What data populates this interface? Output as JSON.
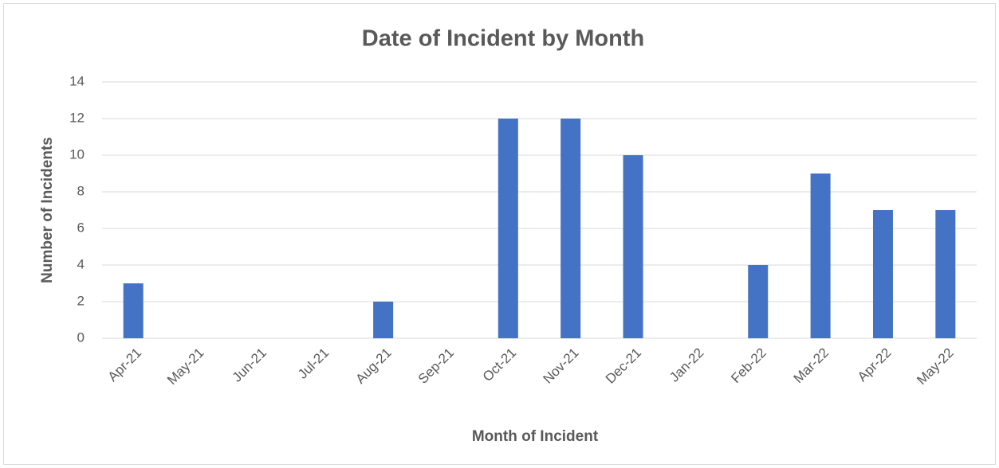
{
  "chart_data": {
    "type": "bar",
    "title": "Date of Incident by Month",
    "x_label": "Month of Incident",
    "y_label": "Number of Incidents",
    "categories": [
      "Apr-21",
      "May-21",
      "Jun-21",
      "Jul-21",
      "Aug-21",
      "Sep-21",
      "Oct-21",
      "Nov-21",
      "Dec-21",
      "Jan-22",
      "Feb-22",
      "Mar-22",
      "Apr-22",
      "May-22"
    ],
    "values": [
      3,
      0,
      0,
      0,
      2,
      0,
      12,
      12,
      10,
      0,
      4,
      9,
      7,
      7
    ],
    "color": "#4472c4",
    "ylim": [
      0,
      14
    ],
    "yticks": [
      0,
      2,
      4,
      6,
      8,
      10,
      12,
      14
    ],
    "grid": true
  }
}
